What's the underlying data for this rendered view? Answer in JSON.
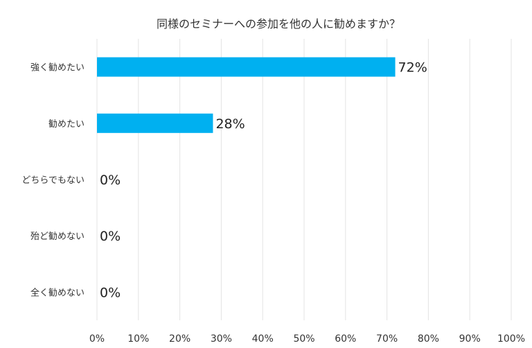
{
  "chart_data": {
    "type": "bar",
    "orientation": "horizontal",
    "title": "同様のセミナーへの参加を他の人に勧めますか？",
    "categories": [
      "強く勧めたい",
      "勧めたい",
      "どちらでもない",
      "殆ど勧めない",
      "全く勧めない"
    ],
    "values": [
      72,
      28,
      0,
      0,
      0
    ],
    "data_labels": [
      "72%",
      "28%",
      "0%",
      "0%",
      "0%"
    ],
    "xlim": [
      0,
      100
    ],
    "x_ticks": [
      "0%",
      "10%",
      "20%",
      "30%",
      "40%",
      "50%",
      "60%",
      "70%",
      "80%",
      "90%",
      "100%"
    ],
    "xlabel": "",
    "ylabel": "",
    "grid": true,
    "legend": "none",
    "bar_color": "#00b0f0"
  }
}
